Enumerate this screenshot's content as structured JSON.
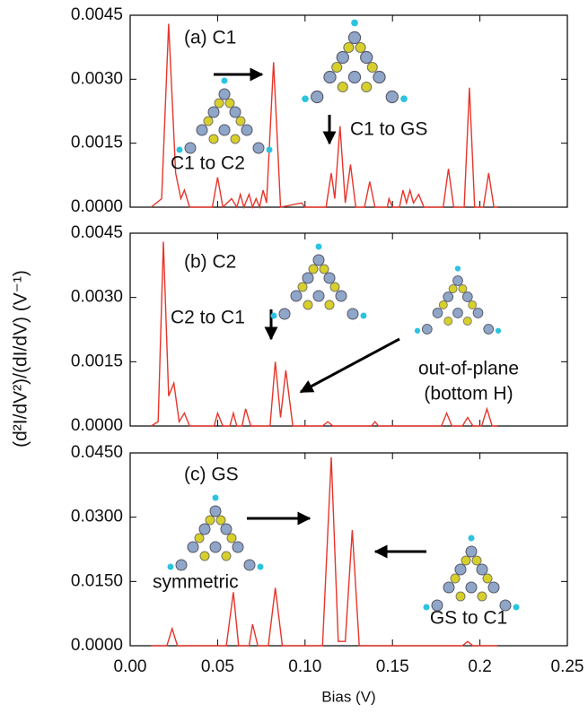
{
  "chart_data": [
    {
      "type": "line",
      "annotations": [
        "(a) C1",
        "C1 to C2",
        "C1 to GS"
      ],
      "ylabel": "(d²I/dV²)/(dI/dV) (V⁻¹)",
      "xlim": [
        0,
        0.25
      ],
      "xticks": [
        {
          "value": 0,
          "label": "0.00"
        },
        0.05,
        {
          "value": 0.1,
          "label": "0.10"
        },
        0.15,
        0.2,
        0.25
      ],
      "ylim": [
        0,
        0.0045
      ],
      "yticks": [
        {
          "value": 0,
          "label": "0.0000"
        },
        0.0015,
        {
          "value": 0.003,
          "label": "0.0030"
        },
        0.0045
      ],
      "series": [
        {
          "color": "#e8342a",
          "x": [
            0.012,
            0.018,
            0.022,
            0.026,
            0.029,
            0.031,
            0.034,
            0.047,
            0.05,
            0.053,
            0.058,
            0.061,
            0.063,
            0.065,
            0.068,
            0.07,
            0.072,
            0.074,
            0.076,
            0.078,
            0.082,
            0.086,
            0.098,
            0.1,
            0.112,
            0.115,
            0.117,
            0.12,
            0.123,
            0.126,
            0.129,
            0.134,
            0.137,
            0.14,
            0.147,
            0.148,
            0.15,
            0.154,
            0.156,
            0.158,
            0.16,
            0.162,
            0.165,
            0.168,
            0.179,
            0.182,
            0.185,
            0.191,
            0.194,
            0.197,
            0.202,
            0.205,
            0.208,
            0.21
          ],
          "values": [
            0,
            0.0002,
            0.0043,
            0.0008,
            0.0002,
            0.0004,
            0,
            0,
            0.0007,
            0,
            0.0002,
            0,
            0.0003,
            0,
            0.0003,
            0,
            0.0002,
            0,
            0.0004,
            0.0001,
            0.0034,
            0,
            0.0001,
            0,
            0,
            0.0008,
            0.0002,
            0.0019,
            0.0001,
            0.001,
            0,
            0,
            0.0006,
            0,
            0,
            0.0002,
            0,
            0,
            0.0004,
            0.0001,
            0.0004,
            0.0001,
            0.0003,
            0,
            0,
            0.0009,
            0,
            0,
            0.0028,
            0,
            0,
            0.0008,
            0,
            0
          ]
        }
      ]
    },
    {
      "type": "line",
      "annotations": [
        "(b) C2",
        "C2 to C1",
        "out-of-plane",
        "(bottom H)"
      ],
      "xlim": [
        0,
        0.25
      ],
      "xticks": [
        {
          "value": 0,
          "label": "0.00"
        },
        0.05,
        {
          "value": 0.1,
          "label": "0.10"
        },
        0.15,
        0.2,
        0.25
      ],
      "ylim": [
        0,
        0.0045
      ],
      "yticks": [
        {
          "value": 0,
          "label": "0.0000"
        },
        0.0015,
        {
          "value": 0.003,
          "label": "0.0030"
        },
        0.0045
      ],
      "series": [
        {
          "color": "#e8342a",
          "x": [
            0.012,
            0.016,
            0.019,
            0.022,
            0.025,
            0.028,
            0.031,
            0.034,
            0.048,
            0.05,
            0.053,
            0.057,
            0.059,
            0.061,
            0.064,
            0.066,
            0.069,
            0.08,
            0.083,
            0.086,
            0.089,
            0.093,
            0.11,
            0.113,
            0.116,
            0.138,
            0.14,
            0.142,
            0.178,
            0.181,
            0.184,
            0.19,
            0.193,
            0.196,
            0.201,
            0.204,
            0.207,
            0.21
          ],
          "values": [
            0,
            0.0001,
            0.0043,
            0.0007,
            0.001,
            0.0001,
            0.0003,
            0,
            0,
            0.0003,
            0,
            0,
            0.0003,
            0,
            0,
            0.0004,
            0,
            0,
            0.0015,
            0.0002,
            0.0013,
            0,
            0,
            0.0001,
            0,
            0,
            0.0001,
            0,
            0,
            0.0003,
            0,
            0,
            0.0002,
            0,
            0,
            0.0004,
            0,
            0
          ]
        }
      ]
    },
    {
      "type": "line",
      "annotations": [
        "(c) GS",
        "symmetric",
        "GS to C1"
      ],
      "xlabel": "Bias (V)",
      "xlim": [
        0,
        0.25
      ],
      "xticks": [
        {
          "value": 0,
          "label": "0.00"
        },
        0.05,
        {
          "value": 0.1,
          "label": "0.10"
        },
        0.15,
        0.2,
        0.25
      ],
      "ylim": [
        0,
        0.045
      ],
      "yticks": [
        {
          "value": 0,
          "label": "0.0000"
        },
        {
          "value": 0.015,
          "label": "0.0150"
        },
        {
          "value": 0.03,
          "label": "0.0300"
        },
        {
          "value": 0.045,
          "label": "0.0450"
        }
      ],
      "series": [
        {
          "color": "#e8342a",
          "x": [
            0.012,
            0.021,
            0.024,
            0.027,
            0.055,
            0.059,
            0.062,
            0.068,
            0.07,
            0.073,
            0.079,
            0.083,
            0.087,
            0.11,
            0.115,
            0.119,
            0.123,
            0.127,
            0.131,
            0.19,
            0.193,
            0.196,
            0.21
          ],
          "values": [
            0,
            0,
            0.004,
            0,
            0,
            0.0125,
            0,
            0,
            0.005,
            0,
            0,
            0.0135,
            0,
            0,
            0.044,
            0.001,
            0.001,
            0.027,
            0,
            0,
            0.001,
            0,
            0
          ]
        }
      ]
    }
  ]
}
